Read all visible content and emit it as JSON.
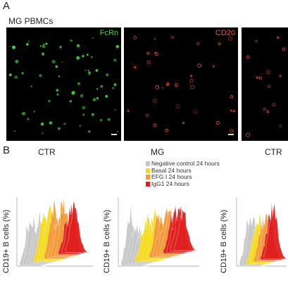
{
  "panels": {
    "a_letter": "A",
    "b_letter": "B"
  },
  "panel_a": {
    "sample_label": "MG PBMCs",
    "images": [
      {
        "marker": "FcRn",
        "color": "#3fdc3a"
      },
      {
        "marker": "CD20",
        "color": "#ff4a32"
      },
      {
        "marker": "",
        "color": "#ff4a32"
      }
    ]
  },
  "panel_b": {
    "groups": [
      "CTR",
      "MG",
      "CTR"
    ],
    "y_label": "CD19+ B cells (%)",
    "legend": [
      {
        "label": "Negative control 24 hours",
        "color": "#c8c8c8"
      },
      {
        "label": "Basal 24 hours",
        "color": "#f5dc1e"
      },
      {
        "label": "EFG I 24 hours",
        "color": "#f39a3c"
      },
      {
        "label": "IgG1 24 hours",
        "color": "#e0201e"
      }
    ]
  }
}
